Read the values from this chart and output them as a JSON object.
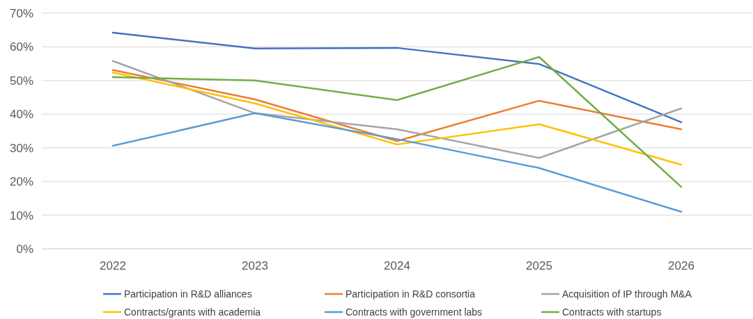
{
  "chart_data": {
    "type": "line",
    "categories": [
      "2022",
      "2023",
      "2024",
      "2025",
      "2026"
    ],
    "series": [
      {
        "name": "Participation in R&D alliances",
        "color": "#4472c4",
        "values": [
          64.2,
          59.5,
          59.7,
          54.9,
          37.6
        ]
      },
      {
        "name": "Participation in R&D consortia",
        "color": "#ed7d31",
        "values": [
          53.1,
          44.4,
          32,
          44,
          35.5
        ]
      },
      {
        "name": "Acquisition of IP through M&A",
        "color": "#a5a5a5",
        "values": [
          55.8,
          40.3,
          35.5,
          27,
          41.7
        ]
      },
      {
        "name": "Contracts/grants with academia",
        "color": "#ffc000",
        "values": [
          52.4,
          43.2,
          31,
          37,
          25
        ]
      },
      {
        "name": "Contracts with government labs",
        "color": "#5b9bd5",
        "values": [
          30.6,
          40.3,
          32.6,
          24,
          11
        ]
      },
      {
        "name": "Contracts with startups",
        "color": "#70ad47",
        "values": [
          51,
          50,
          44.2,
          57,
          18.4
        ]
      }
    ],
    "ylim": [
      0,
      70
    ],
    "yticks": [
      {
        "value": 0,
        "label": "0%"
      },
      {
        "value": 10,
        "label": "10%"
      },
      {
        "value": 20,
        "label": "20%"
      },
      {
        "value": 30,
        "label": "30%"
      },
      {
        "value": 40,
        "label": "40%"
      },
      {
        "value": 50,
        "label": "50%"
      },
      {
        "value": 60,
        "label": "60%"
      },
      {
        "value": 70,
        "label": "70%"
      }
    ],
    "grid": "y",
    "legend": "bottom",
    "marker": "none",
    "line_style": "solid"
  }
}
